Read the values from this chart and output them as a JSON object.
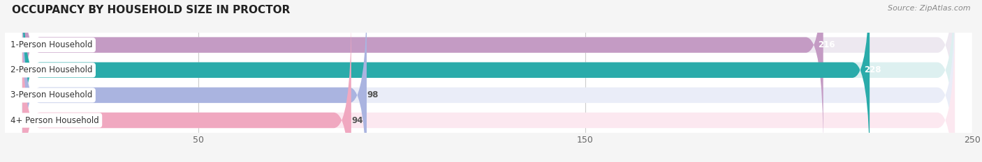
{
  "title": "OCCUPANCY BY HOUSEHOLD SIZE IN PROCTOR",
  "source": "Source: ZipAtlas.com",
  "categories": [
    "1-Person Household",
    "2-Person Household",
    "3-Person Household",
    "4+ Person Household"
  ],
  "values": [
    216,
    228,
    98,
    94
  ],
  "bar_colors": [
    "#c49bc4",
    "#2aabaa",
    "#aab4e0",
    "#f0a8c0"
  ],
  "bar_bg_colors": [
    "#ede8f0",
    "#ddf0f0",
    "#eaedf8",
    "#fce8f0"
  ],
  "value_text_colors": [
    "white",
    "white",
    "#555555",
    "#555555"
  ],
  "xlim": [
    0,
    250
  ],
  "xticks": [
    50,
    150,
    250
  ],
  "background_color": "#f5f5f5",
  "plot_bg_color": "#ffffff",
  "bar_height": 0.62,
  "bar_gap": 0.38,
  "label_fontsize": 8.5,
  "title_fontsize": 11,
  "value_fontsize": 8.5
}
